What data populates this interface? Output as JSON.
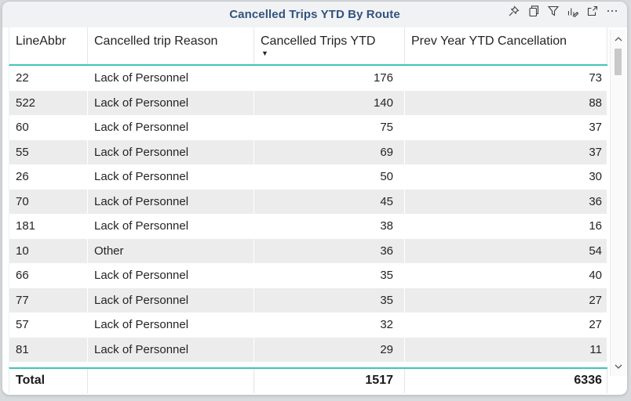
{
  "visual": {
    "title": "Cancelled Trips YTD By Route",
    "title_color": "#325380",
    "accent_teal": "#3fc4ba",
    "stripe_color": "#ececec",
    "toolbar_icons": [
      "pin",
      "copy",
      "filter",
      "personalize-visual",
      "focus-mode",
      "more-options"
    ]
  },
  "chart_data": {
    "type": "table",
    "title": "Cancelled Trips YTD By Route",
    "columns": [
      "LineAbbr",
      "Cancelled trip Reason",
      "Cancelled Trips YTD",
      "Prev Year YTD Cancellation"
    ],
    "sort": {
      "column": "Cancelled Trips YTD",
      "direction": "descending"
    },
    "rows": [
      [
        "22",
        "Lack of Personnel",
        "176",
        "73"
      ],
      [
        "522",
        "Lack of Personnel",
        "140",
        "88"
      ],
      [
        "60",
        "Lack of Personnel",
        "75",
        "37"
      ],
      [
        "55",
        "Lack of Personnel",
        "69",
        "37"
      ],
      [
        "26",
        "Lack of Personnel",
        "50",
        "30"
      ],
      [
        "70",
        "Lack of Personnel",
        "45",
        "36"
      ],
      [
        "181",
        "Lack of Personnel",
        "38",
        "16"
      ],
      [
        "10",
        "Other",
        "36",
        "54"
      ],
      [
        "66",
        "Lack of Personnel",
        "35",
        "40"
      ],
      [
        "77",
        "Lack of Personnel",
        "35",
        "27"
      ],
      [
        "57",
        "Lack of Personnel",
        "32",
        "27"
      ],
      [
        "81",
        "Lack of Personnel",
        "29",
        "11"
      ]
    ],
    "total": [
      "Total",
      "",
      "1517",
      "6336"
    ]
  }
}
